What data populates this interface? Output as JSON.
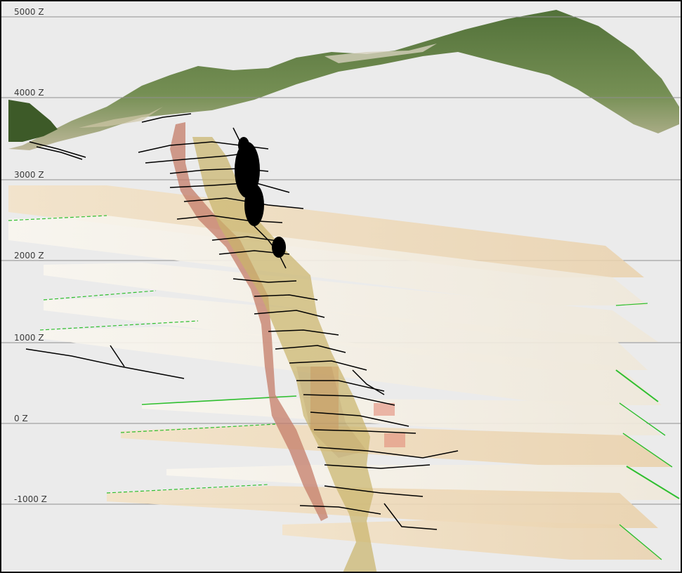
{
  "viewer": {
    "elevation_labels": [
      "5000 Z",
      "4000 Z",
      "3000 Z",
      "2000 Z",
      "1000 Z",
      "0 Z",
      "-1000 Z"
    ]
  },
  "colors": {
    "background": "#ebebeb",
    "terrain_dark": "#3f5f2a",
    "terrain_light": "#c7c0a3",
    "ore_body_tan": "#c9b46a",
    "ore_body_red": "#c57c68",
    "workings": "#000000",
    "section_plane": "#f7f2e8",
    "section_plane_tan": "#f0dcbc",
    "plane_edge_green": "#2fbf2f"
  }
}
